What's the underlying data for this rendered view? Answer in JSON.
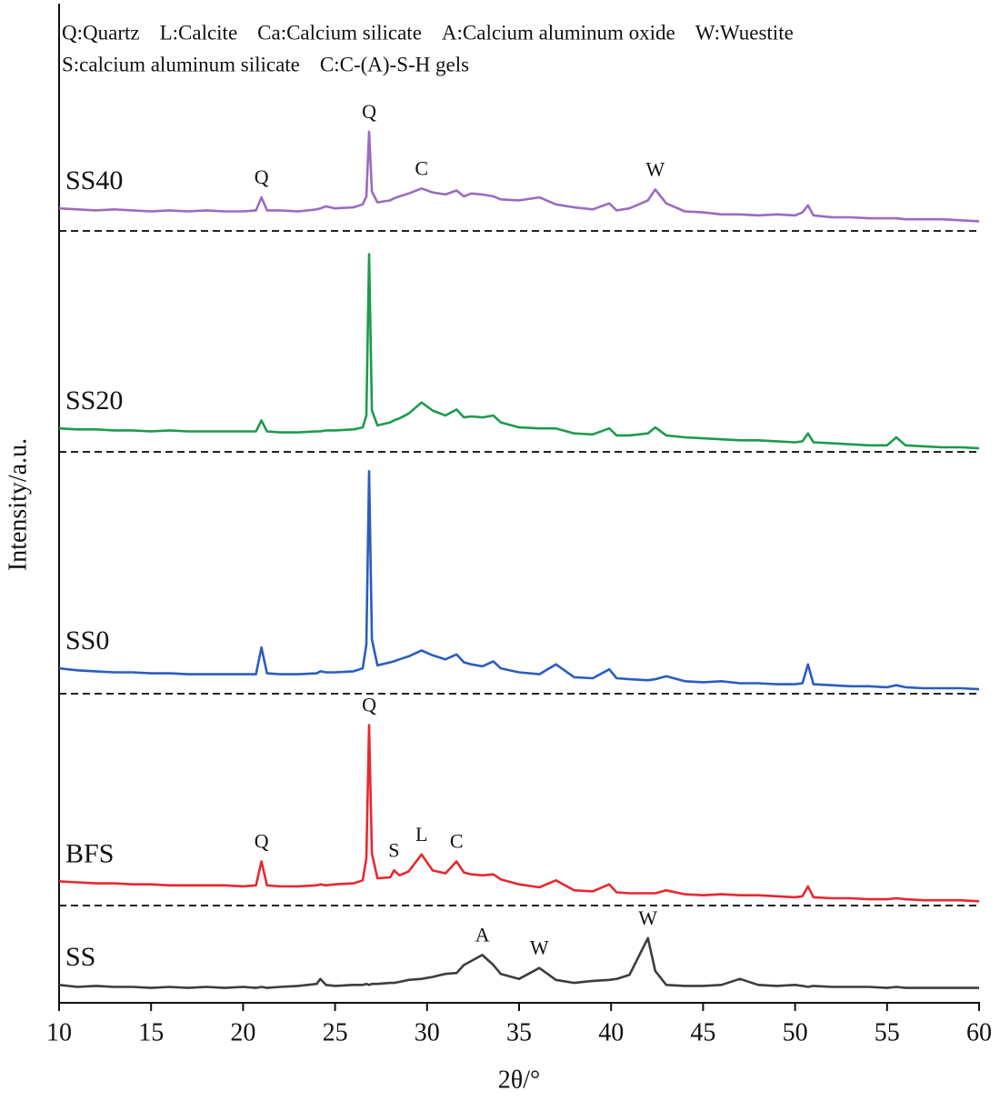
{
  "chart_data": {
    "type": "line",
    "x_label": "2θ/°",
    "y_label": "Intensity/a.u.",
    "key": [
      [
        "Q:Quartz",
        "L:Calcite",
        "Ca:Calcium silicate",
        "A:Calcium aluminum oxide",
        "W:Wuestite"
      ],
      [
        "S:calcium aluminum silicate",
        "C:C-(A)-S-H gels"
      ]
    ],
    "xlim": [
      10,
      60
    ],
    "xticks": [
      10,
      15,
      20,
      25,
      30,
      35,
      40,
      45,
      50,
      55,
      60
    ],
    "ylim": [
      0,
      100
    ],
    "x": [
      10,
      11,
      12,
      13,
      14,
      15,
      16,
      17,
      18,
      19,
      20,
      20.7,
      21,
      21.3,
      22,
      23,
      24,
      24.2,
      24.5,
      25,
      26,
      26.5,
      26.7,
      26.85,
      27,
      27.3,
      28,
      28.2,
      28.5,
      29,
      29.7,
      30.3,
      31,
      31.6,
      32,
      32.4,
      33,
      33.6,
      34,
      35,
      36.1,
      37,
      38,
      39,
      39.9,
      40.3,
      41,
      42,
      42.4,
      43,
      44,
      45,
      46,
      47,
      48,
      49,
      50,
      50.4,
      50.7,
      51,
      52,
      53,
      54,
      55,
      55.5,
      56,
      57,
      58,
      59,
      60
    ],
    "series": [
      {
        "name": "SS",
        "color": "#3d3d3d",
        "values": [
          1.8,
          1.6,
          1.7,
          1.6,
          1.6,
          1.5,
          1.6,
          1.5,
          1.6,
          1.5,
          1.6,
          1.5,
          1.6,
          1.5,
          1.6,
          1.7,
          1.9,
          2.4,
          1.8,
          1.7,
          1.8,
          1.8,
          1.9,
          1.8,
          1.9,
          1.9,
          2.0,
          2.0,
          2.1,
          2.3,
          2.4,
          2.6,
          2.9,
          3.0,
          3.8,
          4.2,
          4.8,
          3.8,
          2.9,
          2.4,
          3.5,
          2.3,
          2.0,
          2.2,
          2.3,
          2.4,
          2.8,
          6.5,
          3.2,
          1.8,
          1.7,
          1.7,
          1.8,
          2.4,
          1.8,
          1.7,
          1.8,
          1.7,
          1.6,
          1.7,
          1.6,
          1.6,
          1.6,
          1.5,
          1.6,
          1.5,
          1.5,
          1.5,
          1.5,
          1.5
        ],
        "peak_labels": [
          {
            "label": "A",
            "x": 33
          },
          {
            "label": "W",
            "x": 36.1
          },
          {
            "label": "W",
            "x": 42
          }
        ]
      },
      {
        "name": "BFS",
        "color": "#e8282f",
        "values": [
          12.2,
          12.1,
          12.0,
          12.0,
          11.9,
          11.9,
          11.8,
          11.8,
          11.8,
          11.8,
          11.7,
          11.8,
          14.2,
          11.8,
          11.7,
          11.7,
          11.8,
          11.9,
          11.8,
          11.9,
          12.0,
          12.3,
          14.5,
          27.9,
          15.0,
          12.5,
          12.6,
          13.3,
          12.8,
          13.2,
          14.9,
          13.3,
          13.0,
          14.2,
          13.1,
          12.9,
          12.8,
          12.9,
          12.4,
          11.9,
          11.6,
          12.3,
          11.3,
          11.2,
          11.9,
          11.1,
          11.0,
          11.0,
          11.0,
          11.3,
          10.9,
          10.8,
          10.9,
          10.8,
          10.8,
          10.7,
          10.6,
          10.7,
          11.7,
          10.6,
          10.5,
          10.5,
          10.4,
          10.4,
          10.5,
          10.4,
          10.3,
          10.3,
          10.3,
          10.2
        ],
        "peak_labels": [
          {
            "label": "Q",
            "x": 21
          },
          {
            "label": "Q",
            "x": 26.85
          },
          {
            "label": "S",
            "x": 28.2
          },
          {
            "label": "L",
            "x": 29.7
          },
          {
            "label": "C",
            "x": 31.6
          }
        ]
      },
      {
        "name": "SS0",
        "color": "#2a5dbf",
        "values": [
          33.6,
          33.4,
          33.3,
          33.2,
          33.2,
          33.1,
          33.1,
          33.0,
          33.0,
          33.0,
          33.0,
          33.0,
          35.7,
          33.1,
          33.0,
          33.0,
          33.1,
          33.3,
          33.2,
          33.2,
          33.3,
          33.6,
          36.0,
          53.4,
          36.5,
          33.9,
          34.2,
          34.3,
          34.5,
          34.8,
          35.4,
          34.9,
          34.5,
          35.0,
          34.2,
          34.0,
          33.8,
          34.3,
          33.6,
          33.2,
          33.0,
          34.0,
          32.7,
          32.6,
          33.5,
          32.6,
          32.5,
          32.4,
          32.5,
          32.8,
          32.3,
          32.2,
          32.3,
          32.1,
          32.1,
          32.0,
          32.0,
          32.1,
          34.0,
          32.0,
          31.9,
          31.8,
          31.8,
          31.7,
          31.9,
          31.7,
          31.6,
          31.6,
          31.6,
          31.5
        ]
      },
      {
        "name": "SS20",
        "color": "#1c9b4c",
        "values": [
          57.7,
          57.6,
          57.6,
          57.5,
          57.5,
          57.4,
          57.5,
          57.4,
          57.4,
          57.4,
          57.4,
          57.4,
          58.5,
          57.4,
          57.3,
          57.3,
          57.4,
          57.4,
          57.5,
          57.5,
          57.6,
          57.8,
          59.0,
          75.2,
          59.5,
          58.0,
          58.3,
          58.5,
          58.7,
          59.2,
          60.3,
          59.5,
          59.0,
          59.6,
          58.8,
          58.9,
          58.8,
          59.0,
          58.3,
          57.8,
          57.7,
          57.7,
          57.2,
          57.1,
          57.7,
          57.0,
          57.0,
          57.2,
          57.8,
          57.0,
          56.8,
          56.7,
          56.6,
          56.5,
          56.5,
          56.4,
          56.3,
          56.4,
          57.2,
          56.3,
          56.2,
          56.1,
          56.0,
          56.0,
          56.8,
          56.0,
          55.9,
          55.8,
          55.8,
          55.7
        ]
      },
      {
        "name": "SS40",
        "color": "#9b6bbf",
        "values": [
          79.8,
          79.7,
          79.6,
          79.7,
          79.6,
          79.5,
          79.6,
          79.5,
          79.6,
          79.5,
          79.5,
          79.6,
          80.9,
          79.6,
          79.6,
          79.5,
          79.7,
          79.8,
          80.0,
          79.8,
          79.9,
          80.2,
          81.0,
          87.5,
          81.5,
          80.4,
          80.6,
          80.8,
          81.0,
          81.3,
          81.8,
          81.4,
          81.2,
          81.6,
          81.0,
          81.3,
          81.2,
          81.0,
          80.7,
          80.6,
          80.9,
          80.2,
          79.9,
          79.7,
          80.3,
          79.6,
          79.8,
          80.6,
          81.7,
          80.3,
          79.5,
          79.4,
          79.2,
          79.2,
          79.1,
          79.2,
          79.1,
          79.4,
          80.1,
          79.1,
          78.9,
          78.9,
          78.8,
          78.8,
          78.8,
          78.7,
          78.7,
          78.7,
          78.6,
          78.5
        ],
        "peak_labels": [
          {
            "label": "Q",
            "x": 21
          },
          {
            "label": "Q",
            "x": 26.85
          },
          {
            "label": "C",
            "x": 29.7
          },
          {
            "label": "W",
            "x": 42.4
          }
        ]
      }
    ]
  }
}
